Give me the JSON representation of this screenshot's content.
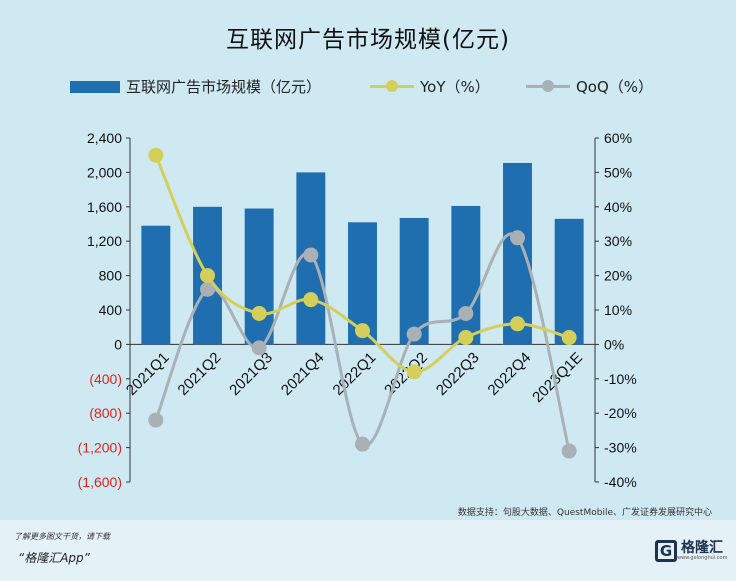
{
  "page": {
    "title": "互联网广告市场规模(亿元)"
  },
  "legend": {
    "bar": "互联网广告市场规模（亿元）",
    "yoy": "YoY（%）",
    "qoq": "QoQ（%）"
  },
  "colors": {
    "bar": "#1f6fb0",
    "yoy": "#d4cf5a",
    "qoq": "#a9b0b6",
    "negative": "#e0241b"
  },
  "chart_data": {
    "type": "bar",
    "title": "互联网广告市场规模(亿元)",
    "categories": [
      "2021Q1",
      "2021Q2",
      "2021Q3",
      "2021Q4",
      "2022Q1",
      "2022Q2",
      "2022Q3",
      "2022Q4",
      "2023Q1E"
    ],
    "series": [
      {
        "name": "互联网广告市场规模（亿元）",
        "axis": "left",
        "type": "bar",
        "values": [
          1380,
          1600,
          1580,
          2000,
          1420,
          1470,
          1610,
          2110,
          1460
        ]
      },
      {
        "name": "YoY（%）",
        "axis": "right",
        "type": "line",
        "values": [
          55,
          20,
          9,
          13,
          4,
          -8,
          2,
          6,
          2
        ]
      },
      {
        "name": "QoQ（%）",
        "axis": "right",
        "type": "line",
        "values": [
          -22,
          16,
          -1,
          26,
          -29,
          3,
          9,
          31,
          -31
        ]
      }
    ],
    "yleft": {
      "ylim": [
        -1600,
        2400
      ],
      "ticks": [
        "2,400",
        "2,000",
        "1,600",
        "1,200",
        "800",
        "400",
        "0",
        "(400)",
        "(800)",
        "(1,200)",
        "(1,600)"
      ]
    },
    "yright": {
      "ylim": [
        -40,
        60
      ],
      "ticks": [
        "60%",
        "50%",
        "40%",
        "30%",
        "20%",
        "10%",
        "0%",
        "-10%",
        "-20%",
        "-30%",
        "-40%"
      ]
    },
    "legend_position": "top"
  },
  "source": "数据支持：句股大数据、QuestMobile、广发证券发展研究中心",
  "footer": {
    "line1": "了解更多图文干货，请下载",
    "line2": "“格隆汇App”",
    "logo_text": "格隆汇",
    "logo_site": "www.gelonghui.com"
  }
}
